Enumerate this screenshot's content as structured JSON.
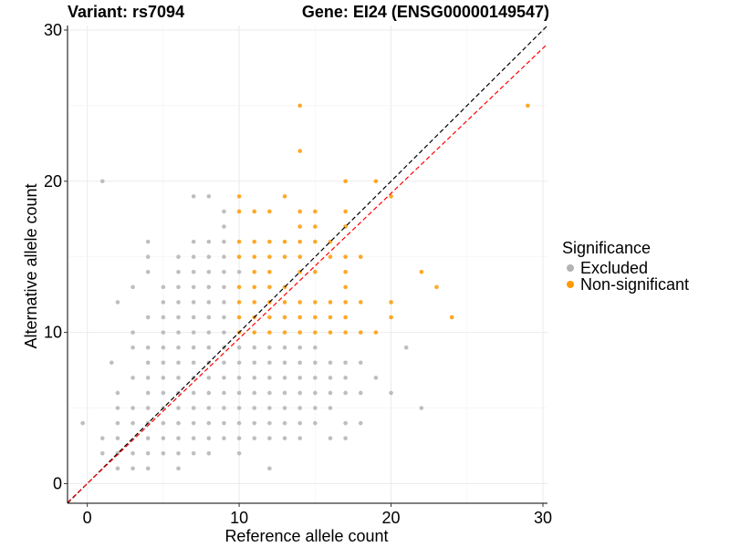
{
  "header": {
    "variant": "Variant: rs7094",
    "gene": "Gene: EI24 (ENSG00000149547)"
  },
  "legend": {
    "title": "Significance",
    "items": [
      {
        "label": "Excluded",
        "color": "#b3b3b3"
      },
      {
        "label": "Non-significant",
        "color": "#ff9900"
      }
    ]
  },
  "chart_data": {
    "type": "scatter",
    "xlabel": "Reference allele count",
    "ylabel": "Alternative allele count",
    "xlim": [
      -1.3,
      30.3
    ],
    "ylim": [
      -1.3,
      30.3
    ],
    "xticks": [
      0,
      10,
      20,
      30
    ],
    "yticks": [
      0,
      10,
      20,
      30
    ],
    "grid": true,
    "legend_position": "right",
    "reference_lines": [
      {
        "style": "dashed",
        "color": "#000000",
        "slope": 1,
        "intercept": 0
      },
      {
        "style": "dashed",
        "color": "#ff0000",
        "slope": 0.96,
        "intercept": 0
      }
    ],
    "series": [
      {
        "name": "Excluded",
        "color": "#b3b3b3",
        "points": [
          [
            -0.3,
            4
          ],
          [
            1,
            20
          ],
          [
            1,
            3
          ],
          [
            1,
            2
          ],
          [
            2,
            4
          ],
          [
            2,
            3
          ],
          [
            2,
            2
          ],
          [
            2,
            1
          ],
          [
            1.6,
            8
          ],
          [
            2,
            5
          ],
          [
            2,
            6
          ],
          [
            2,
            12
          ],
          [
            3,
            9
          ],
          [
            3,
            7
          ],
          [
            3,
            5
          ],
          [
            3,
            4
          ],
          [
            3,
            2
          ],
          [
            3,
            1
          ],
          [
            3,
            13
          ],
          [
            3,
            10
          ],
          [
            4,
            14
          ],
          [
            4,
            11
          ],
          [
            4,
            9
          ],
          [
            4,
            8
          ],
          [
            4,
            7
          ],
          [
            4,
            6
          ],
          [
            4,
            5
          ],
          [
            4,
            4
          ],
          [
            4,
            3
          ],
          [
            4,
            2
          ],
          [
            4,
            1
          ],
          [
            5,
            13
          ],
          [
            5,
            12
          ],
          [
            5,
            11
          ],
          [
            5,
            10
          ],
          [
            5,
            9
          ],
          [
            5,
            8
          ],
          [
            5,
            7
          ],
          [
            5,
            6
          ],
          [
            5,
            5
          ],
          [
            5,
            4
          ],
          [
            5,
            3
          ],
          [
            5,
            2
          ],
          [
            4,
            16
          ],
          [
            4,
            15
          ],
          [
            6,
            15
          ],
          [
            6,
            14
          ],
          [
            6,
            13
          ],
          [
            6,
            12
          ],
          [
            6,
            11
          ],
          [
            6,
            10
          ],
          [
            6,
            9
          ],
          [
            6,
            8
          ],
          [
            6,
            7
          ],
          [
            6,
            6
          ],
          [
            6,
            5
          ],
          [
            6,
            4
          ],
          [
            6,
            3
          ],
          [
            6,
            2
          ],
          [
            6,
            1
          ],
          [
            7,
            19
          ],
          [
            7,
            16
          ],
          [
            7,
            15
          ],
          [
            7,
            14
          ],
          [
            7,
            13
          ],
          [
            7,
            12
          ],
          [
            7,
            11
          ],
          [
            7,
            10
          ],
          [
            7,
            9
          ],
          [
            7,
            8
          ],
          [
            7,
            7
          ],
          [
            7,
            6
          ],
          [
            7,
            5
          ],
          [
            7,
            4
          ],
          [
            7,
            3
          ],
          [
            7,
            2
          ],
          [
            8,
            19
          ],
          [
            8,
            16
          ],
          [
            8,
            15
          ],
          [
            8,
            14
          ],
          [
            8,
            13
          ],
          [
            8,
            12
          ],
          [
            8,
            11
          ],
          [
            8,
            10
          ],
          [
            8,
            9
          ],
          [
            8,
            8
          ],
          [
            8,
            7
          ],
          [
            8,
            6
          ],
          [
            8,
            5
          ],
          [
            8,
            4
          ],
          [
            8,
            3
          ],
          [
            8,
            2
          ],
          [
            9,
            17
          ],
          [
            9,
            16
          ],
          [
            9,
            15
          ],
          [
            9,
            14
          ],
          [
            9,
            13
          ],
          [
            9,
            12
          ],
          [
            9,
            11
          ],
          [
            9,
            10
          ],
          [
            9,
            9
          ],
          [
            9,
            8
          ],
          [
            9,
            7
          ],
          [
            9,
            6
          ],
          [
            9,
            5
          ],
          [
            9,
            4
          ],
          [
            9,
            3
          ],
          [
            9,
            18
          ],
          [
            10,
            14
          ],
          [
            10,
            9
          ],
          [
            10,
            8
          ],
          [
            10,
            7
          ],
          [
            10,
            6
          ],
          [
            10,
            5
          ],
          [
            10,
            4
          ],
          [
            10,
            3
          ],
          [
            10,
            2
          ],
          [
            11,
            9
          ],
          [
            11,
            8
          ],
          [
            11,
            7
          ],
          [
            11,
            6
          ],
          [
            11,
            5
          ],
          [
            11,
            4
          ],
          [
            11,
            3
          ],
          [
            12,
            9
          ],
          [
            12,
            8
          ],
          [
            12,
            7
          ],
          [
            12,
            6
          ],
          [
            12,
            5
          ],
          [
            12,
            4
          ],
          [
            12,
            3
          ],
          [
            12,
            1
          ],
          [
            13,
            9
          ],
          [
            13,
            8
          ],
          [
            13,
            7
          ],
          [
            13,
            6
          ],
          [
            13,
            5
          ],
          [
            13,
            4
          ],
          [
            13,
            3
          ],
          [
            14,
            9
          ],
          [
            14,
            8
          ],
          [
            14,
            7
          ],
          [
            14,
            6
          ],
          [
            14,
            5
          ],
          [
            14,
            4
          ],
          [
            14,
            3
          ],
          [
            15,
            9
          ],
          [
            15,
            8
          ],
          [
            15,
            7
          ],
          [
            15,
            6
          ],
          [
            15,
            5
          ],
          [
            15,
            4
          ],
          [
            16,
            8
          ],
          [
            16,
            7
          ],
          [
            16,
            6
          ],
          [
            16,
            5
          ],
          [
            16,
            3
          ],
          [
            17,
            8
          ],
          [
            17,
            7
          ],
          [
            17,
            6
          ],
          [
            17,
            4
          ],
          [
            17,
            3
          ],
          [
            18,
            8
          ],
          [
            18,
            6
          ],
          [
            18,
            4
          ],
          [
            19,
            7
          ],
          [
            20,
            6
          ],
          [
            21,
            9
          ],
          [
            22,
            5
          ]
        ]
      },
      {
        "name": "Non-significant",
        "color": "#ff9900",
        "points": [
          [
            10,
            19
          ],
          [
            10,
            18
          ],
          [
            10,
            16
          ],
          [
            10,
            15
          ],
          [
            10,
            13
          ],
          [
            10,
            12
          ],
          [
            10,
            11
          ],
          [
            10,
            10
          ],
          [
            11,
            18
          ],
          [
            11,
            16
          ],
          [
            11,
            15
          ],
          [
            11,
            14
          ],
          [
            11,
            13
          ],
          [
            11,
            12
          ],
          [
            11,
            11
          ],
          [
            11,
            10
          ],
          [
            12,
            18
          ],
          [
            12,
            16
          ],
          [
            12,
            15
          ],
          [
            12,
            14
          ],
          [
            12,
            13
          ],
          [
            12,
            12
          ],
          [
            12,
            11
          ],
          [
            12,
            10
          ],
          [
            13,
            19
          ],
          [
            13,
            16
          ],
          [
            13,
            15
          ],
          [
            13,
            13
          ],
          [
            13,
            12
          ],
          [
            13,
            11
          ],
          [
            13,
            10
          ],
          [
            14,
            25
          ],
          [
            14,
            22
          ],
          [
            14,
            18
          ],
          [
            14,
            17
          ],
          [
            14,
            16
          ],
          [
            14,
            15
          ],
          [
            14,
            14
          ],
          [
            14,
            12
          ],
          [
            14,
            11
          ],
          [
            14,
            10
          ],
          [
            15,
            18
          ],
          [
            15,
            17
          ],
          [
            15,
            16
          ],
          [
            15,
            14
          ],
          [
            15,
            12
          ],
          [
            15,
            11
          ],
          [
            15,
            10
          ],
          [
            16,
            16
          ],
          [
            16,
            15
          ],
          [
            16,
            12
          ],
          [
            16,
            11
          ],
          [
            16,
            10
          ],
          [
            17,
            20
          ],
          [
            17,
            18
          ],
          [
            17,
            17
          ],
          [
            17,
            15
          ],
          [
            17,
            14
          ],
          [
            17,
            13
          ],
          [
            17,
            12
          ],
          [
            17,
            11
          ],
          [
            17,
            10
          ],
          [
            18,
            15
          ],
          [
            18,
            12
          ],
          [
            18,
            10
          ],
          [
            19,
            20
          ],
          [
            19,
            10
          ],
          [
            20,
            19
          ],
          [
            20,
            12
          ],
          [
            20,
            11
          ],
          [
            22,
            14
          ],
          [
            23,
            13
          ],
          [
            24,
            11
          ],
          [
            29,
            25
          ]
        ]
      }
    ]
  }
}
